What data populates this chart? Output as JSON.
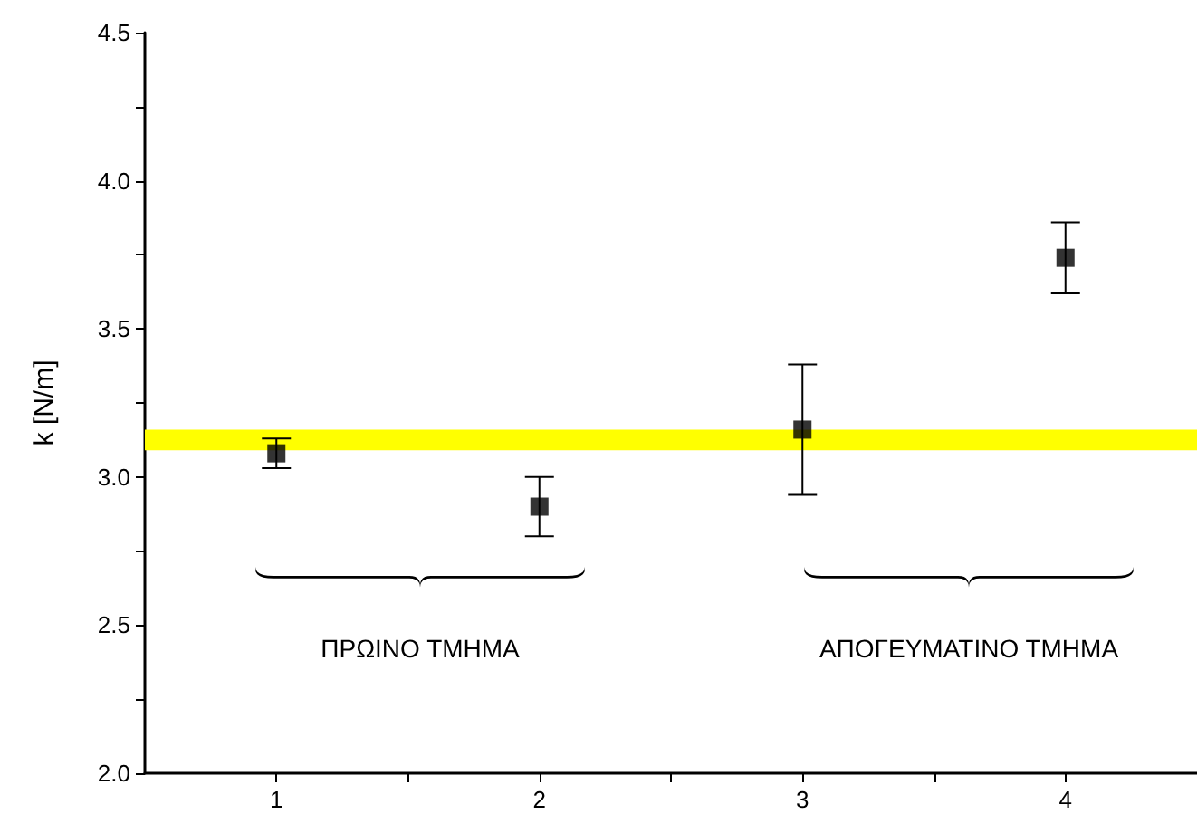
{
  "chart_data": {
    "type": "scatter",
    "ylabel": "k [N/m]",
    "x": [
      1,
      2,
      3,
      4
    ],
    "series": [
      {
        "color": "#000000",
        "values": [
          3.08,
          2.9,
          3.16,
          3.74
        ],
        "errors": [
          0.05,
          0.1,
          0.22,
          0.12
        ]
      }
    ],
    "marker": "square",
    "grid": false,
    "xlim": [
      0.5,
      4.5
    ],
    "xticks": [
      1,
      {
        "value": 1.5,
        "label": null
      },
      2,
      {
        "value": 2.5,
        "label": null
      },
      3,
      {
        "value": 3.5,
        "label": null
      },
      4
    ],
    "ylim": [
      2,
      4.5
    ],
    "yticks": [
      {
        "value": 2,
        "label": "2.0"
      },
      {
        "value": 2.25,
        "label": null
      },
      {
        "value": 2.5,
        "label": "2.5"
      },
      {
        "value": 2.75,
        "label": null
      },
      {
        "value": 3,
        "label": "3.0"
      },
      {
        "value": 3.25,
        "label": null
      },
      {
        "value": 3.5,
        "label": "3.5"
      },
      {
        "value": 3.75,
        "label": null
      },
      {
        "value": 4,
        "label": "4.0"
      },
      {
        "value": 4.25,
        "label": null
      },
      {
        "value": 4.5,
        "label": "4.5"
      }
    ],
    "bands": [
      {
        "axis": "y",
        "from": 3.09,
        "to": 3.16,
        "color": "#ffff00"
      }
    ],
    "annotations": [
      "ΠΡΩΙΝΟ ΤΜΗΜΑ",
      "ΑΠΟΓΕΥΜΑΤΙΝΟ ΤΜΗΜΑ"
    ]
  }
}
